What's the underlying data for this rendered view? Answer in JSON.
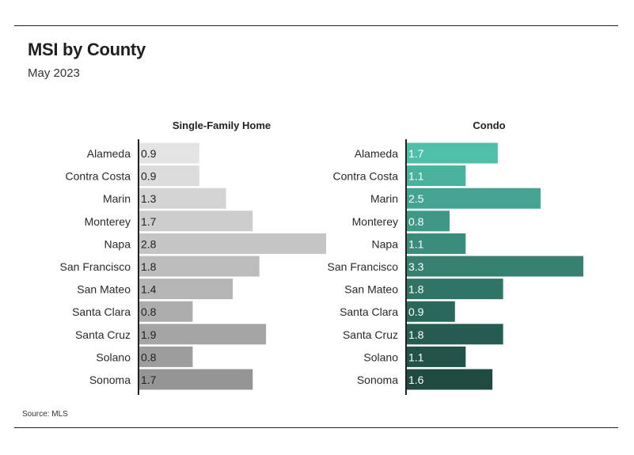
{
  "title": "MSI by County",
  "subtitle": "May 2023",
  "source": "Source: MLS",
  "chart_data": [
    {
      "type": "bar",
      "orientation": "horizontal",
      "title": "Single-Family Home",
      "categories": [
        "Alameda",
        "Contra Costa",
        "Marin",
        "Monterey",
        "Napa",
        "San Francisco",
        "San Mateo",
        "Santa Clara",
        "Santa Cruz",
        "Solano",
        "Sonoma"
      ],
      "values": [
        0.9,
        0.9,
        1.3,
        1.7,
        2.8,
        1.8,
        1.4,
        0.8,
        1.9,
        0.8,
        1.7
      ],
      "data_labels": [
        "0.9",
        "0.9",
        "1.3",
        "1.7",
        "2.8",
        "1.8",
        "1.4",
        "0.8",
        "1.9",
        "0.8",
        "1.7"
      ],
      "xlim": [
        0,
        2.8
      ],
      "colors": [
        "#e4e4e4",
        "#dcdcdc",
        "#d4d4d4",
        "#cdcdcd",
        "#c5c5c5",
        "#bdbdbd",
        "#b5b5b5",
        "#adadad",
        "#a5a5a5",
        "#9d9d9d",
        "#959595"
      ],
      "label_color": "#222222",
      "grid": false
    },
    {
      "type": "bar",
      "orientation": "horizontal",
      "title": "Condo",
      "categories": [
        "Alameda",
        "Contra Costa",
        "Marin",
        "Monterey",
        "Napa",
        "San Francisco",
        "San Mateo",
        "Santa Clara",
        "Santa Cruz",
        "Solano",
        "Sonoma"
      ],
      "values": [
        1.7,
        1.1,
        2.5,
        0.8,
        1.1,
        3.3,
        1.8,
        0.9,
        1.8,
        1.1,
        1.6
      ],
      "data_labels": [
        "1.7",
        "1.1",
        "2.5",
        "0.8",
        "1.1",
        "3.3",
        "1.8",
        "0.9",
        "1.8",
        "1.1",
        "1.6"
      ],
      "xlim": [
        0,
        3.3
      ],
      "colors": [
        "#4fbfa9",
        "#49b19c",
        "#44a491",
        "#3f9886",
        "#3a8c7b",
        "#358070",
        "#307466",
        "#2b685c",
        "#265c52",
        "#225248",
        "#1f4a40"
      ],
      "label_color": "#ffffff",
      "grid": false
    }
  ]
}
